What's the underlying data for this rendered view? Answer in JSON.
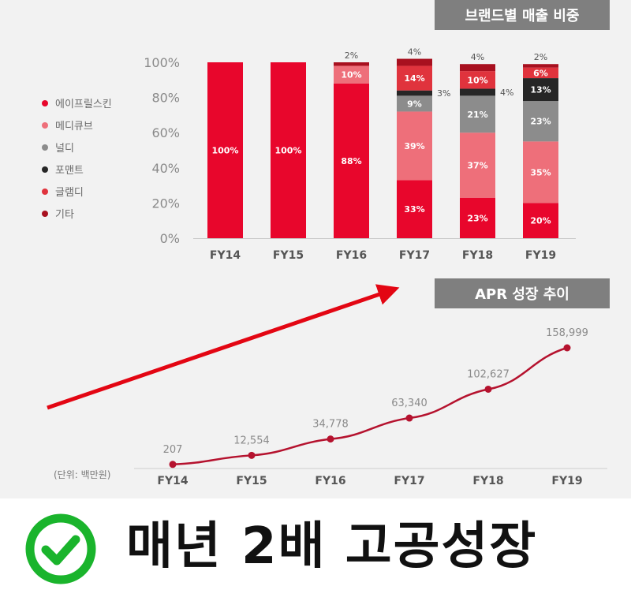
{
  "chart_data": [
    {
      "type": "bar",
      "stacked": true,
      "title": "브랜드별 매출 비중",
      "categories": [
        "FY14",
        "FY15",
        "FY16",
        "FY17",
        "FY18",
        "FY19"
      ],
      "y_ticks": [
        "0%",
        "20%",
        "40%",
        "60%",
        "80%",
        "100%"
      ],
      "ylim": [
        0,
        100
      ],
      "legend_position": "left",
      "series": [
        {
          "name": "에이프릴스킨",
          "color": "#e8062c",
          "values": [
            100,
            100,
            88,
            33,
            23,
            20
          ],
          "labels": [
            "100%",
            "100%",
            "88%",
            "33%",
            "23%",
            "20%"
          ]
        },
        {
          "name": "메디큐브",
          "color": "#ee6f7a",
          "values": [
            0,
            0,
            10,
            39,
            37,
            35
          ],
          "labels": [
            "",
            "",
            "10%",
            "39%",
            "37%",
            "35%"
          ]
        },
        {
          "name": "널디",
          "color": "#8c8c8c",
          "values": [
            0,
            0,
            0,
            9,
            21,
            23
          ],
          "labels": [
            "",
            "",
            "",
            "9%",
            "21%",
            "23%"
          ]
        },
        {
          "name": "포맨트",
          "color": "#262626",
          "values": [
            0,
            0,
            0,
            3,
            4,
            13
          ],
          "labels": [
            "",
            "",
            "",
            "3%",
            "4%",
            "13%"
          ]
        },
        {
          "name": "글램디",
          "color": "#e0333d",
          "values": [
            0,
            0,
            0,
            14,
            10,
            6
          ],
          "labels": [
            "",
            "",
            "",
            "14%",
            "10%",
            "6%"
          ]
        },
        {
          "name": "기타",
          "color": "#a8101f",
          "values": [
            0,
            0,
            2,
            4,
            4,
            2
          ],
          "labels": [
            "",
            "",
            "2%",
            "4%",
            "4%",
            "2%"
          ]
        }
      ]
    },
    {
      "type": "line",
      "title": "APR 성장 추이",
      "unit_note": "(단위: 백만원)",
      "categories": [
        "FY14",
        "FY15",
        "FY16",
        "FY17",
        "FY18",
        "FY19"
      ],
      "series": [
        {
          "color": "#b5122e",
          "values": [
            207,
            12554,
            34778,
            63340,
            102627,
            158999
          ],
          "labels": [
            "207",
            "12,554",
            "34,778",
            "63,340",
            "102,627",
            "158,999"
          ]
        }
      ]
    }
  ],
  "headline": "매년 2배 고공성장",
  "check_icon": {
    "color": "#1ab42c"
  },
  "arrow": {
    "color": "#e30613"
  }
}
